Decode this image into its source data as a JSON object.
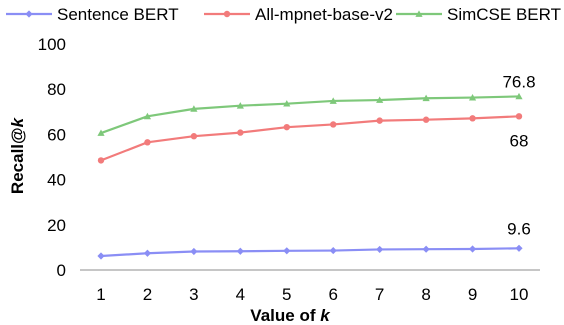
{
  "chart_data": {
    "type": "line",
    "title": "",
    "xlabel_prefix": "Value of ",
    "xlabel_var": "k",
    "ylabel_prefix": "Recall@",
    "ylabel_var": "k",
    "x": [
      1,
      2,
      3,
      4,
      5,
      6,
      7,
      8,
      9,
      10
    ],
    "ylim": [
      0,
      100
    ],
    "yticks": [
      0,
      20,
      40,
      60,
      80,
      100
    ],
    "grid": false,
    "legend_position": "top",
    "series": [
      {
        "name": "Sentence BERT",
        "color": "#8a8ef5",
        "marker": "diamond",
        "values": [
          6.2,
          7.4,
          8.2,
          8.3,
          8.5,
          8.6,
          9.1,
          9.2,
          9.3,
          9.6
        ]
      },
      {
        "name": "All-mpnet-base-v2",
        "color": "#f27b7b",
        "marker": "circle",
        "values": [
          48.5,
          56.5,
          59.2,
          60.8,
          63.2,
          64.4,
          66.1,
          66.5,
          67.1,
          68
        ]
      },
      {
        "name": "SimCSE BERT",
        "color": "#7ec87a",
        "marker": "triangle",
        "values": [
          60.6,
          68.0,
          71.3,
          72.7,
          73.6,
          74.8,
          75.2,
          76.0,
          76.3,
          76.8
        ]
      }
    ],
    "annotations": [
      "9.6",
      "68",
      "76.8"
    ]
  }
}
